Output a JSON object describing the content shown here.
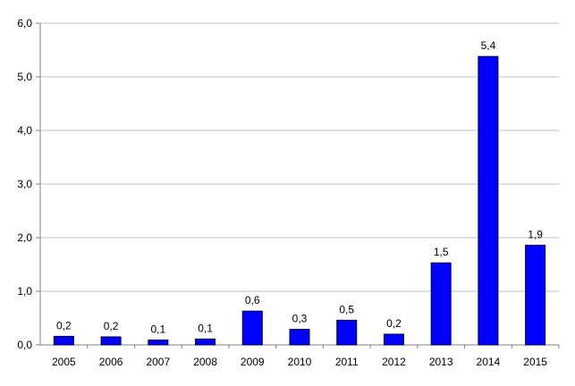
{
  "chart_data": {
    "type": "bar",
    "categories": [
      "2005",
      "2006",
      "2007",
      "2008",
      "2009",
      "2010",
      "2011",
      "2012",
      "2013",
      "2014",
      "2015"
    ],
    "values": [
      0.16,
      0.15,
      0.09,
      0.11,
      0.63,
      0.29,
      0.46,
      0.2,
      1.53,
      5.38,
      1.86
    ],
    "data_labels": [
      "0,2",
      "0,2",
      "0,1",
      "0,1",
      "0,6",
      "0,3",
      "0,5",
      "0,2",
      "1,5",
      "5,4",
      "1,9"
    ],
    "y_ticks": [
      0,
      1,
      2,
      3,
      4,
      5,
      6
    ],
    "y_tick_labels": [
      "0,0",
      "1,0",
      "2,0",
      "3,0",
      "4,0",
      "5,0",
      "6,0"
    ],
    "ylim": [
      0,
      6
    ],
    "title": "",
    "xlabel": "",
    "ylabel": "",
    "grid": true,
    "legend": "none",
    "colors": {
      "bar_fill": "#0000FF",
      "bar_stroke": "#000033",
      "grid": "#C0C0C0",
      "axis": "#808080"
    }
  }
}
